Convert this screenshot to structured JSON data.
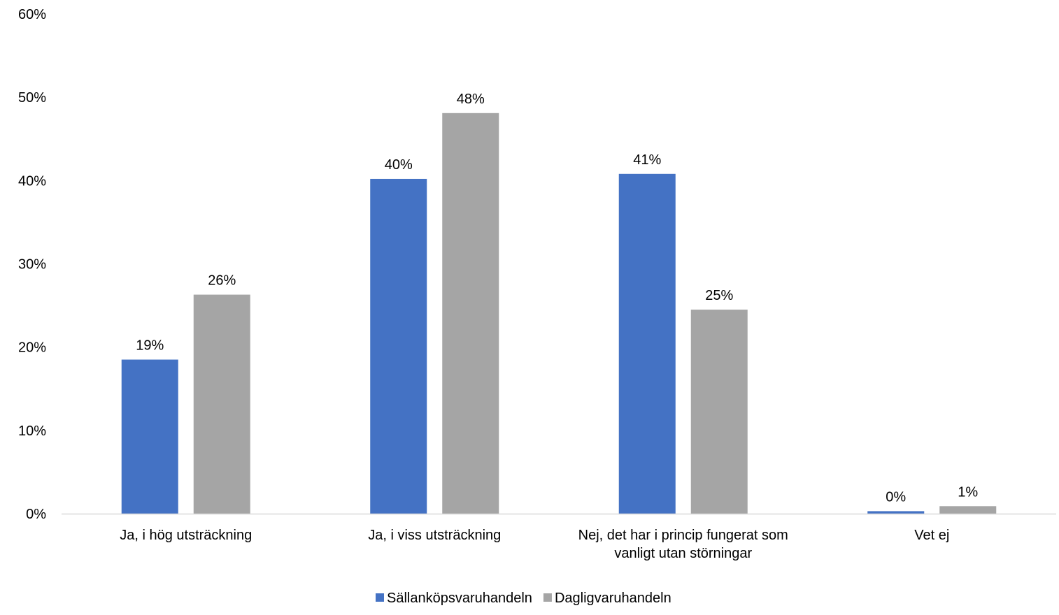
{
  "chart_data": {
    "type": "bar",
    "categories": [
      [
        "Ja, i hög utsträckning"
      ],
      [
        "Ja, i viss utsträckning"
      ],
      [
        "Nej, det har i princip fungerat som",
        "vanligt utan störningar"
      ],
      [
        "Vet ej"
      ]
    ],
    "series": [
      {
        "name": "Sällanköpsvaruhandeln",
        "color": "#4472c4",
        "values": [
          18.5,
          40.2,
          40.8,
          0.3
        ],
        "labels": [
          "19%",
          "40%",
          "41%",
          "0%"
        ]
      },
      {
        "name": "Dagligvaruhandeln",
        "color": "#a5a5a5",
        "values": [
          26.3,
          48.1,
          24.5,
          0.9
        ],
        "labels": [
          "26%",
          "48%",
          "25%",
          "1%"
        ]
      }
    ],
    "ylim": [
      0,
      60
    ],
    "yticks": [
      0,
      10,
      20,
      30,
      40,
      50,
      60
    ],
    "ytick_labels": [
      "0%",
      "10%",
      "20%",
      "30%",
      "40%",
      "50%",
      "60%"
    ],
    "grid": false,
    "legend_position": "bottom",
    "title": "",
    "xlabel": "",
    "ylabel": ""
  }
}
